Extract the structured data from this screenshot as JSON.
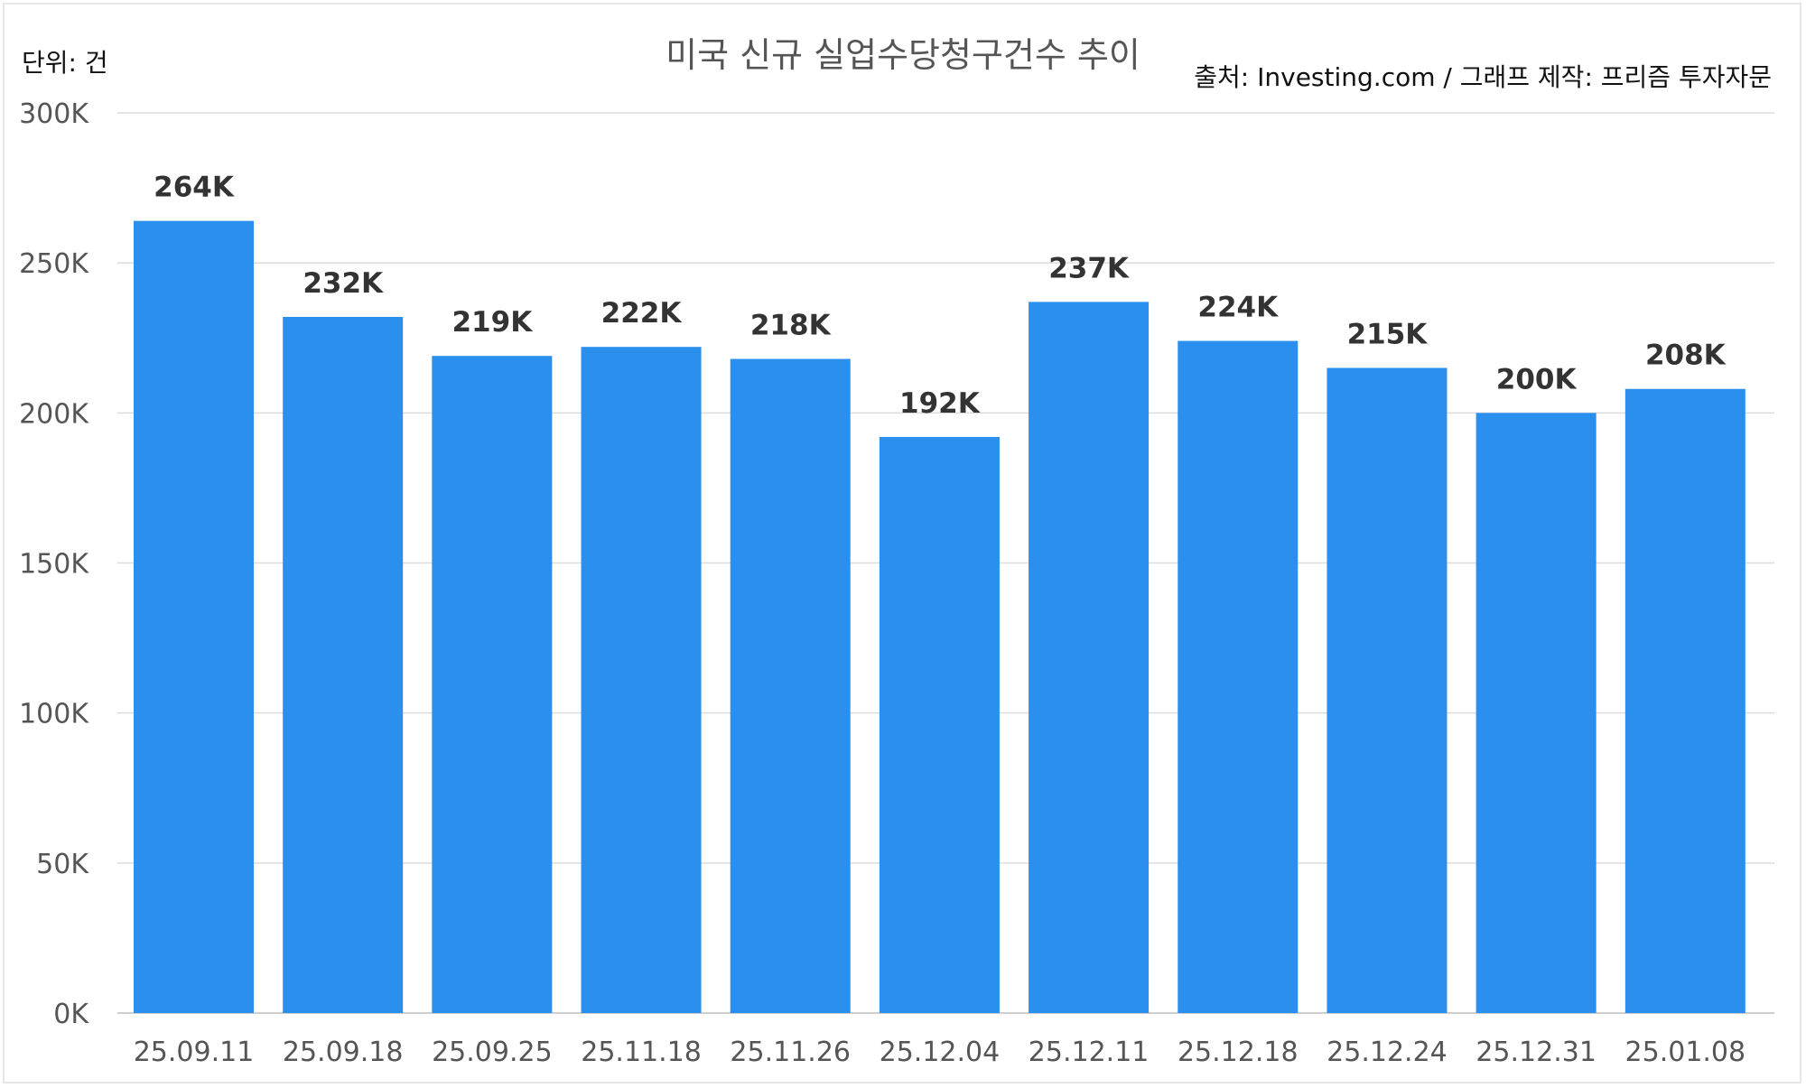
{
  "header": {
    "title": "미국 신규 실업수당청구건수 추이",
    "unit": "단위: 건",
    "source": "출처: Investing.com / 그래프 제작: 프리즘 투자자문"
  },
  "colors": {
    "bar": "#2a8fed",
    "grid": "#dcdcdc",
    "axis": "#bfbfbf"
  },
  "chart_data": {
    "type": "bar",
    "title": "미국 신규 실업수당청구건수 추이",
    "xlabel": "",
    "ylabel": "",
    "ylim": [
      0,
      300000
    ],
    "grid": true,
    "y_ticks": [
      {
        "value": 0,
        "label": "0K"
      },
      {
        "value": 50000,
        "label": "50K"
      },
      {
        "value": 100000,
        "label": "100K"
      },
      {
        "value": 150000,
        "label": "150K"
      },
      {
        "value": 200000,
        "label": "200K"
      },
      {
        "value": 250000,
        "label": "250K"
      },
      {
        "value": 300000,
        "label": "300K"
      }
    ],
    "categories": [
      "25.09.11",
      "25.09.18",
      "25.09.25",
      "25.11.18",
      "25.11.26",
      "25.12.04",
      "25.12.11",
      "25.12.18",
      "25.12.24",
      "25.12.31",
      "25.01.08"
    ],
    "values": [
      264000,
      232000,
      219000,
      222000,
      218000,
      192000,
      237000,
      224000,
      215000,
      200000,
      208000
    ],
    "data_labels": [
      "264K",
      "232K",
      "219K",
      "222K",
      "218K",
      "192K",
      "237K",
      "224K",
      "215K",
      "200K",
      "208K"
    ]
  }
}
